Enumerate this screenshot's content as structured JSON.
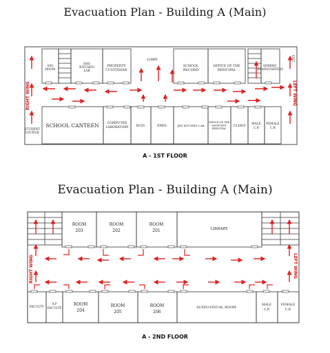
{
  "floor1": {
    "title": "Evacuation Plan - Building A (Main)",
    "caption": "A - 1ST FLOOR",
    "wing_left": "RIGHT WING",
    "wing_right": "LEFT WING",
    "top_rooms": [
      "SSG ROOM",
      "SHS KITCHEN LAB",
      "PROPERTY CUSTODIAN",
      "LOBBY",
      "SCHOOL RECORD",
      "OFFICE OF THE PRINCIPAL",
      "SDRRMC HEADQUARTERS",
      "EXIT"
    ],
    "bottom_rooms": [
      "STUDENT LOUNGE",
      "SCHOOL CANTEEN",
      "COMPUTER LABORATORY",
      "BCIS",
      "EMIS",
      "JHS KITCHEN LAB",
      "OFFICE OF THE ASSISTANT PRINCIPAL",
      "CLINIC",
      "MALE C.R",
      "FEMALE C.R"
    ]
  },
  "floor2": {
    "title": "Evacuation Plan - Building A (Main)",
    "caption": "A - 2ND FLOOR",
    "wing_left": "RIGHT WING",
    "wing_right": "LEFT WING",
    "top_rooms": [
      "ROOM 203",
      "ROOM 202",
      "ROOM 201",
      "LIBRARY"
    ],
    "bottom_rooms": [
      "FACULTY",
      "A.P FACULTY",
      "ROOM 204",
      "ROOM 205",
      "ROOM 206",
      "AUDIO-VISUAL ROOM",
      "MALE C.R",
      "FEMALE C.R"
    ]
  },
  "colors": {
    "arrow": "#dd2222",
    "wall": "#333333"
  }
}
